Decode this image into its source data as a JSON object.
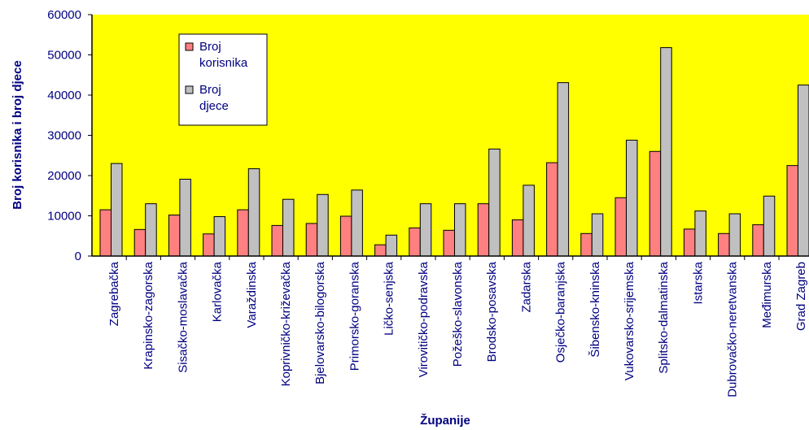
{
  "chart_data": {
    "type": "bar",
    "title": "",
    "xlabel": "Županije",
    "ylabel": "Broj korisnika i broj djece",
    "ylim": [
      0,
      60000
    ],
    "yticks": [
      "0",
      "10000",
      "20000",
      "30000",
      "40000",
      "50000",
      "60000"
    ],
    "grid": false,
    "legend_position": "top-left",
    "plot_background": "#ffff00",
    "categories": [
      "Zagrebačka",
      "Krapinsko-zagorska",
      "Sisačko-moslavačka",
      "Karlovačka",
      "Varaždinska",
      "Koprivničko-križevačka",
      "Bjelovarsko-bilogorska",
      "Primorsko-goranska",
      "Ličko-senjska",
      "Virovitičko-podravska",
      "Požeško-slavonska",
      "Brodsko-posavska",
      "Zadarska",
      "Osječko-baranjska",
      "Šibensko-kninska",
      "Vukovarsko-srijemska",
      "Splitsko-dalmatinska",
      "Istarska",
      "Dubrovačko-neretvanska",
      "Međimurska",
      "Grad Zagreb"
    ],
    "series": [
      {
        "name": "Broj korisnika",
        "color": "#ff8080",
        "values": [
          11500,
          6600,
          10200,
          5500,
          11500,
          7600,
          8100,
          9900,
          2800,
          7000,
          6400,
          13000,
          9000,
          23200,
          5600,
          14500,
          26000,
          6700,
          5600,
          7800,
          22500
        ]
      },
      {
        "name": "Broj djece",
        "color": "#c0c0c0",
        "values": [
          23000,
          13000,
          19100,
          9800,
          21700,
          14100,
          15300,
          16400,
          5200,
          13000,
          13000,
          26600,
          17600,
          43100,
          10500,
          28800,
          51800,
          11200,
          10500,
          14900,
          42500
        ]
      }
    ],
    "legend": [
      {
        "line1": "Broj",
        "line2": "korisnika"
      },
      {
        "line1": "Broj",
        "line2": "djece"
      }
    ]
  }
}
